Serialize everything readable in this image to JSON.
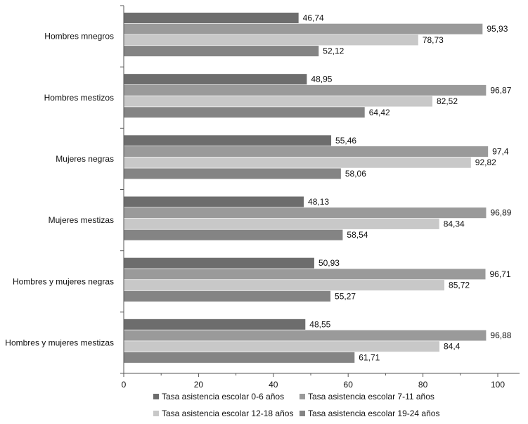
{
  "chart_data": {
    "type": "bar",
    "orientation": "horizontal",
    "categories": [
      "Hombres mnegros",
      "Hombres mestizos",
      "Mujeres negras",
      "Mujeres mestizas",
      "Hombres y mujeres negras",
      "Hombres y mujeres mestizas"
    ],
    "series": [
      {
        "name": "Tasa asistencia escolar 0-6 años",
        "color": "#6d6d6d",
        "values": [
          46.74,
          48.95,
          55.46,
          48.13,
          50.93,
          48.55
        ],
        "labels": [
          "46,74",
          "48,95",
          "55,46",
          "48,13",
          "50,93",
          "48,55"
        ]
      },
      {
        "name": "Tasa asistencia escolar 7-11 años",
        "color": "#9a9a9a",
        "values": [
          95.93,
          96.87,
          97.4,
          96.89,
          96.71,
          96.88
        ],
        "labels": [
          "95,93",
          "96,87",
          "97,4",
          "96,89",
          "96,71",
          "96,88"
        ]
      },
      {
        "name": "Tasa asistencia escolar 12-18 años",
        "color": "#c8c8c8",
        "values": [
          78.73,
          82.52,
          92.82,
          84.34,
          85.72,
          84.4
        ],
        "labels": [
          "78,73",
          "82,52",
          "92,82",
          "84,34",
          "85,72",
          "84,4"
        ]
      },
      {
        "name": "Tasa asistencia escolar 19-24 años",
        "color": "#848484",
        "values": [
          52.12,
          64.42,
          58.06,
          58.54,
          55.27,
          61.71
        ],
        "labels": [
          "52,12",
          "64,42",
          "58,06",
          "58,54",
          "55,27",
          "61,71"
        ]
      }
    ],
    "xlim": [
      0,
      105
    ],
    "xticks": [
      0,
      20,
      40,
      60,
      80,
      100
    ],
    "xtick_labels": [
      "0",
      "20",
      "40",
      "60",
      "80",
      "100"
    ],
    "grid": false,
    "legend_position": "bottom"
  }
}
